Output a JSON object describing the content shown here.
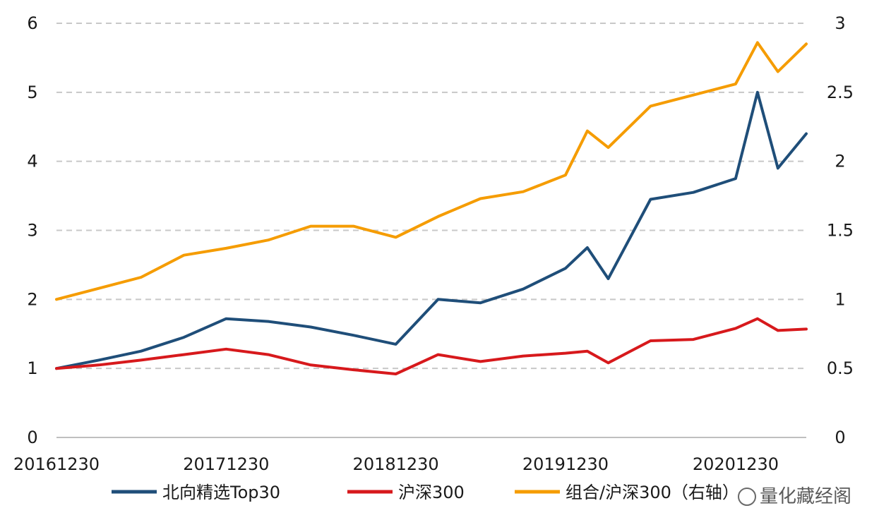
{
  "chart_data": {
    "type": "line",
    "x_ticks": [
      "20161230",
      "20171230",
      "20181230",
      "20191230",
      "20201230"
    ],
    "y_left_ticks": [
      "0",
      "1",
      "2",
      "3",
      "4",
      "5",
      "6"
    ],
    "y_right_ticks": [
      "0",
      "0.5",
      "1",
      "1.5",
      "2",
      "2.5",
      "3"
    ],
    "ylim_left": [
      0,
      6
    ],
    "ylim_right": [
      0,
      3
    ],
    "grid": true,
    "legend_position": "bottom",
    "x": [
      "2016-12-30",
      "2017-03-31",
      "2017-06-30",
      "2017-09-30",
      "2017-12-30",
      "2018-03-31",
      "2018-06-30",
      "2018-09-30",
      "2018-12-30",
      "2019-03-31",
      "2019-06-30",
      "2019-09-30",
      "2019-12-30",
      "2020-02-15",
      "2020-03-31",
      "2020-06-30",
      "2020-09-30",
      "2020-12-30",
      "2021-02-15",
      "2021-03-31",
      "2021-05-31"
    ],
    "series": [
      {
        "name": "北向精选Top30",
        "axis": "left",
        "color": "#1f4e79",
        "values": [
          1.0,
          1.12,
          1.25,
          1.45,
          1.72,
          1.68,
          1.6,
          1.48,
          1.35,
          2.0,
          1.95,
          2.15,
          2.45,
          2.75,
          2.3,
          3.45,
          3.55,
          3.75,
          5.0,
          3.9,
          4.4
        ]
      },
      {
        "name": "沪深300",
        "axis": "left",
        "color": "#d7191c",
        "values": [
          1.0,
          1.05,
          1.12,
          1.2,
          1.28,
          1.2,
          1.05,
          0.98,
          0.92,
          1.2,
          1.1,
          1.18,
          1.22,
          1.25,
          1.08,
          1.4,
          1.42,
          1.58,
          1.72,
          1.55,
          1.57
        ]
      },
      {
        "name": "组合/沪深300（右轴）",
        "axis": "right",
        "color": "#f59c00",
        "values": [
          1.0,
          1.08,
          1.16,
          1.32,
          1.37,
          1.43,
          1.53,
          1.53,
          1.45,
          1.6,
          1.73,
          1.78,
          1.9,
          2.22,
          2.1,
          2.4,
          2.48,
          2.56,
          2.86,
          2.65,
          2.85
        ]
      }
    ]
  },
  "watermark": "量化藏经阁"
}
